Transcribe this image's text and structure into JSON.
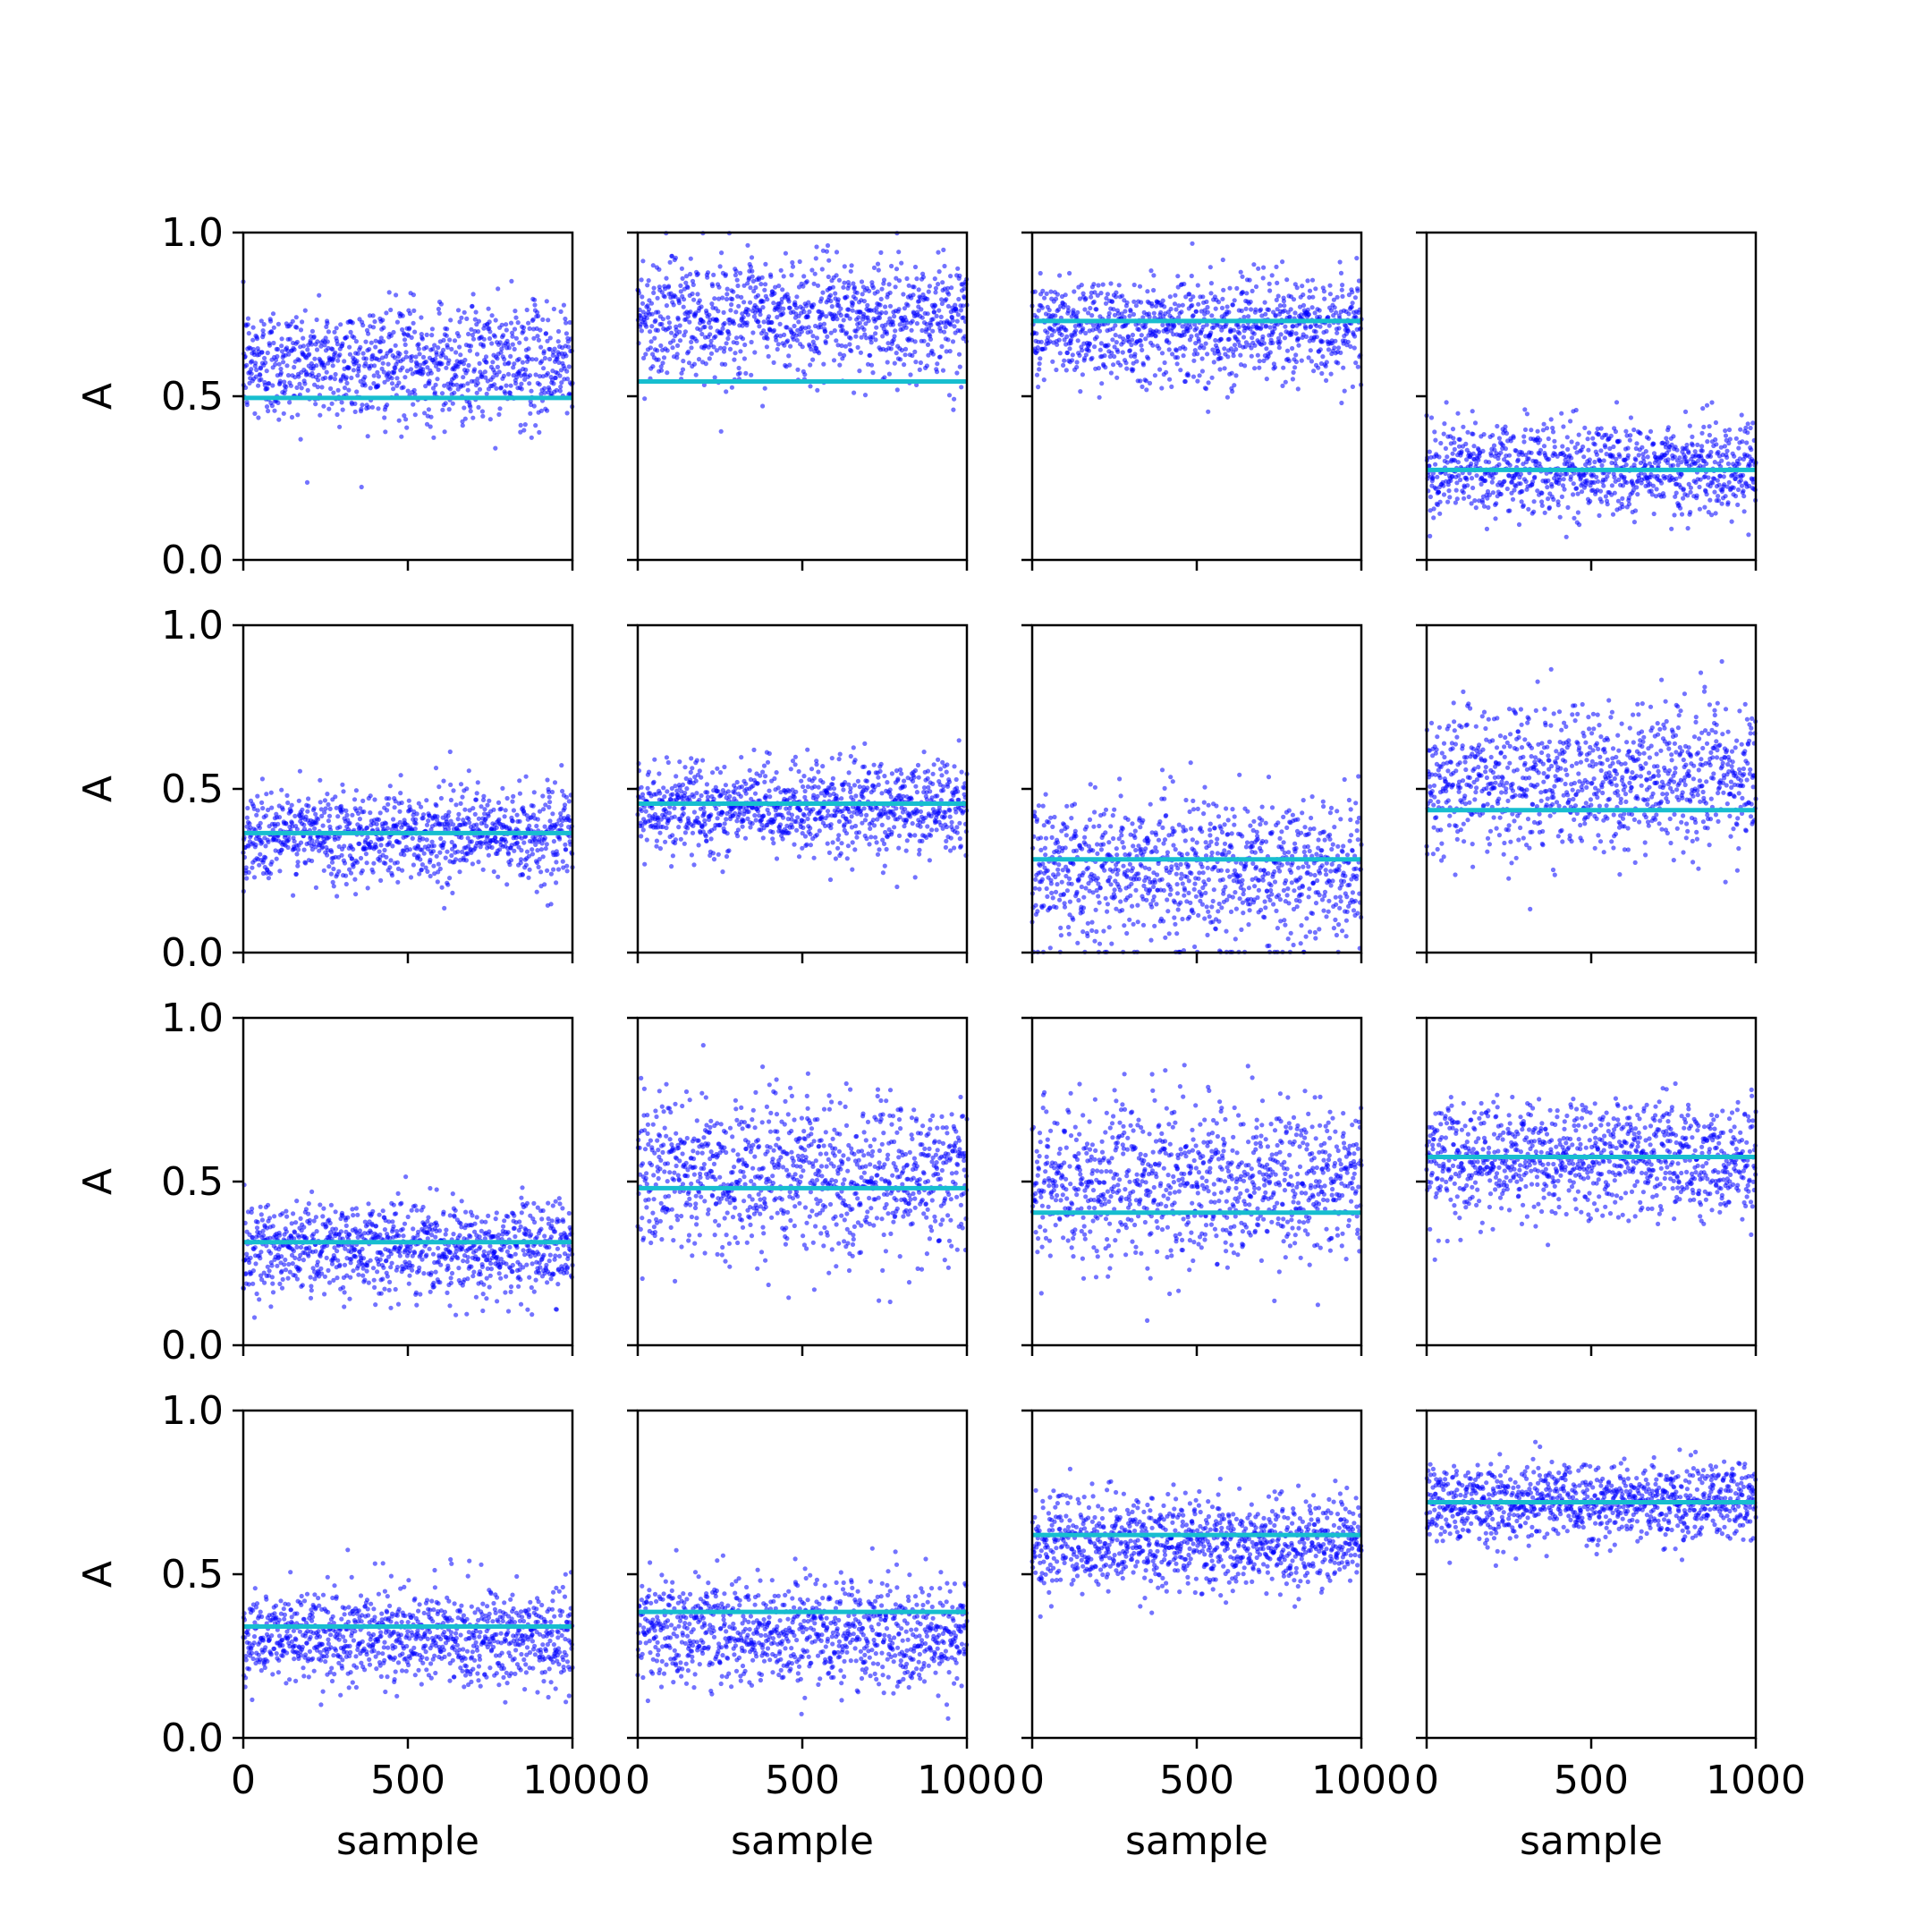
{
  "chart_data": {
    "type": "scatter",
    "layout": {
      "rows": 4,
      "cols": 4
    },
    "xlim": [
      0,
      1000
    ],
    "ylim": [
      0,
      1
    ],
    "x_ticks": [
      0,
      500,
      1000
    ],
    "x_tick_labels": [
      "0",
      "500",
      "1000"
    ],
    "y_ticks": [
      0,
      0.5,
      1
    ],
    "y_tick_labels": [
      "0.0",
      "0.5",
      "1.0"
    ],
    "xlabel": "sample",
    "ylabel": "A",
    "samples_per_panel": 1000,
    "grid": false,
    "point_color": "#0000ff",
    "line_color": "#17becf",
    "panels": [
      {
        "row": 0,
        "col": 0,
        "mean": 0.6,
        "spread": 0.09,
        "line_value": 0.495
      },
      {
        "row": 0,
        "col": 1,
        "mean": 0.74,
        "spread": 0.09,
        "line_value": 0.545
      },
      {
        "row": 0,
        "col": 2,
        "mean": 0.71,
        "spread": 0.08,
        "line_value": 0.73
      },
      {
        "row": 0,
        "col": 3,
        "mean": 0.28,
        "spread": 0.07,
        "line_value": 0.275
      },
      {
        "row": 1,
        "col": 0,
        "mean": 0.36,
        "spread": 0.07,
        "line_value": 0.365
      },
      {
        "row": 1,
        "col": 1,
        "mean": 0.44,
        "spread": 0.07,
        "line_value": 0.455
      },
      {
        "row": 1,
        "col": 2,
        "mean": 0.25,
        "spread": 0.11,
        "line_value": 0.285
      },
      {
        "row": 1,
        "col": 3,
        "mean": 0.53,
        "spread": 0.11,
        "line_value": 0.435
      },
      {
        "row": 2,
        "col": 0,
        "mean": 0.3,
        "spread": 0.07,
        "line_value": 0.315
      },
      {
        "row": 2,
        "col": 1,
        "mean": 0.52,
        "spread": 0.12,
        "line_value": 0.48
      },
      {
        "row": 2,
        "col": 2,
        "mean": 0.5,
        "spread": 0.12,
        "line_value": 0.405
      },
      {
        "row": 2,
        "col": 3,
        "mean": 0.57,
        "spread": 0.09,
        "line_value": 0.575
      },
      {
        "row": 3,
        "col": 0,
        "mean": 0.31,
        "spread": 0.07,
        "line_value": 0.34
      },
      {
        "row": 3,
        "col": 1,
        "mean": 0.32,
        "spread": 0.08,
        "line_value": 0.385
      },
      {
        "row": 3,
        "col": 2,
        "mean": 0.6,
        "spread": 0.07,
        "line_value": 0.62
      },
      {
        "row": 3,
        "col": 3,
        "mean": 0.72,
        "spread": 0.06,
        "line_value": 0.72
      }
    ]
  }
}
